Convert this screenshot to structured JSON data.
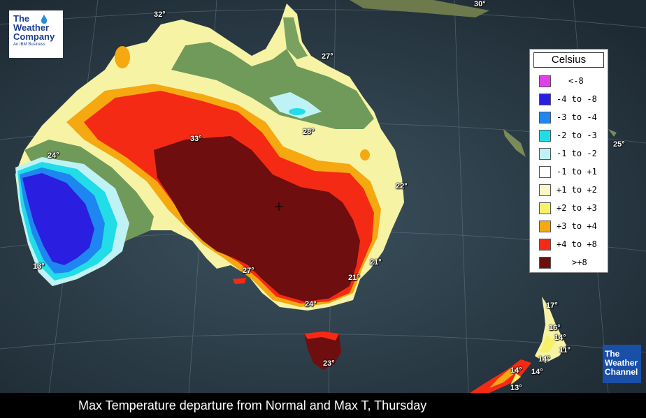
{
  "caption": "Max Temperature departure from Normal and Max T, Thursday",
  "brand_logo": {
    "lines": [
      "The",
      "Weather",
      "Company"
    ],
    "subtitle": "An IBM Business",
    "color": "#1b3f8f"
  },
  "channel_logo": {
    "lines": [
      "The",
      "Weather",
      "Channel"
    ],
    "background": "#1a4fa8"
  },
  "legend": {
    "title": "Celsius",
    "entries": [
      {
        "label": "<-8",
        "color": "#e040e8"
      },
      {
        "label": "-4 to -8",
        "color": "#2a1ee0"
      },
      {
        "label": "-3 to -4",
        "color": "#1e86f0"
      },
      {
        "label": "-2 to -3",
        "color": "#22dde8"
      },
      {
        "label": "-1 to -2",
        "color": "#bff2f4"
      },
      {
        "label": "-1 to +1",
        "color": "#ffffff"
      },
      {
        "label": "+1 to +2",
        "color": "#fbf8c8"
      },
      {
        "label": "+2 to +3",
        "color": "#f6f06a"
      },
      {
        "label": "+3 to +4",
        "color": "#f5a810"
      },
      {
        "label": "+4 to +8",
        "color": "#f52a14"
      },
      {
        "label": ">+8",
        "color": "#6e0e0e"
      }
    ]
  },
  "temperatures": [
    "32°",
    "30°",
    "27°",
    "28°",
    "33°",
    "24°",
    "22°",
    "25°",
    "13°",
    "27°",
    "21°",
    "21°",
    "24°",
    "23°",
    "17°",
    "16°",
    "14°",
    "11°",
    "14°",
    "14°",
    "14°",
    "13°"
  ]
}
